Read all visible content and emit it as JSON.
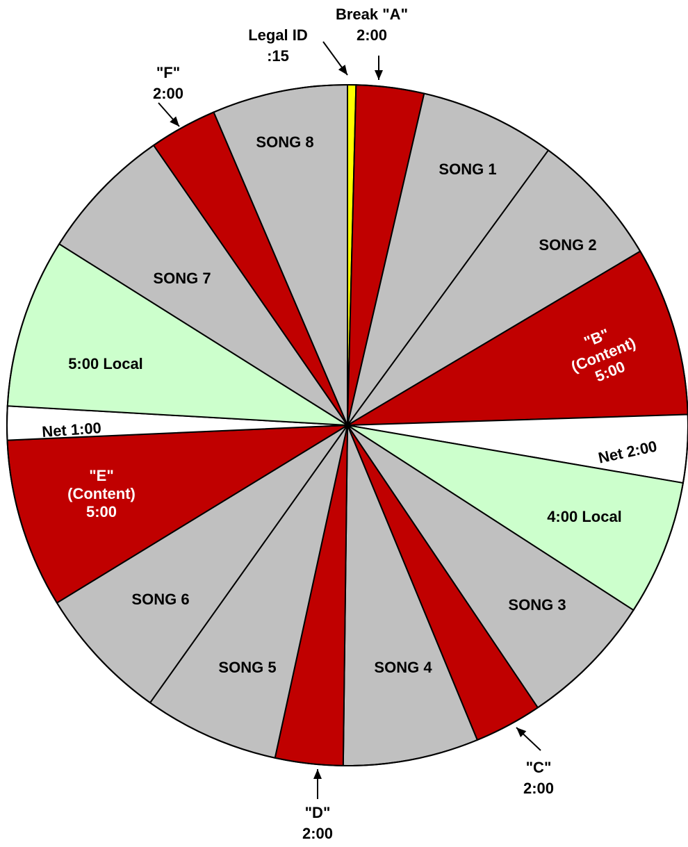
{
  "chart_data": {
    "type": "pie",
    "colors": {
      "song": "#C0C0C0",
      "break": "#C00000",
      "local": "#CCFFCC",
      "net": "#FFFFFF",
      "legal_id": "#FFFF00",
      "outline": "#000000",
      "label_dark": "#000000",
      "label_light": "#FFFFFF"
    },
    "slices": [
      {
        "name": "legal-id",
        "minutes": 0.25,
        "color_key": "legal_id",
        "lines": []
      },
      {
        "name": "break-a",
        "minutes": 2,
        "color_key": "break",
        "lines": []
      },
      {
        "name": "song-1",
        "minutes": 4,
        "color_key": "song",
        "lines": [
          "SONG 1"
        ]
      },
      {
        "name": "song-2",
        "minutes": 4,
        "color_key": "song",
        "lines": [
          "SONG 2"
        ]
      },
      {
        "name": "break-b",
        "minutes": 5,
        "color_key": "break",
        "lines": [
          "\"B\"",
          "(Content)",
          "5:00"
        ]
      },
      {
        "name": "net-2",
        "minutes": 2,
        "color_key": "net",
        "lines": [
          "Net 2:00"
        ]
      },
      {
        "name": "local-4",
        "minutes": 4,
        "color_key": "local",
        "lines": [
          "4:00 Local"
        ]
      },
      {
        "name": "song-3",
        "minutes": 4,
        "color_key": "song",
        "lines": [
          "SONG 3"
        ]
      },
      {
        "name": "break-c",
        "minutes": 2,
        "color_key": "break",
        "lines": []
      },
      {
        "name": "song-4",
        "minutes": 4,
        "color_key": "song",
        "lines": [
          "SONG 4"
        ]
      },
      {
        "name": "break-d",
        "minutes": 2,
        "color_key": "break",
        "lines": []
      },
      {
        "name": "song-5",
        "minutes": 4,
        "color_key": "song",
        "lines": [
          "SONG 5"
        ]
      },
      {
        "name": "song-6",
        "minutes": 4,
        "color_key": "song",
        "lines": [
          "SONG 6"
        ]
      },
      {
        "name": "break-e",
        "minutes": 5,
        "color_key": "break",
        "lines": [
          "\"E\"",
          "(Content)",
          "5:00"
        ]
      },
      {
        "name": "net-1",
        "minutes": 1,
        "color_key": "net",
        "lines": [
          "Net 1:00"
        ]
      },
      {
        "name": "local-5",
        "minutes": 5,
        "color_key": "local",
        "lines": [
          "5:00 Local"
        ]
      },
      {
        "name": "song-7",
        "minutes": 4,
        "color_key": "song",
        "lines": [
          "SONG 7"
        ]
      },
      {
        "name": "break-f",
        "minutes": 2,
        "color_key": "break",
        "lines": []
      },
      {
        "name": "song-8",
        "minutes": 4,
        "color_key": "song",
        "lines": [
          "SONG 8"
        ]
      }
    ],
    "callouts": [
      {
        "name": "legal-id",
        "lines": [
          "Legal ID",
          ":15"
        ]
      },
      {
        "name": "break-a",
        "lines": [
          "Break \"A\"",
          "2:00"
        ]
      },
      {
        "name": "break-c",
        "lines": [
          "\"C\"",
          "2:00"
        ]
      },
      {
        "name": "break-d",
        "lines": [
          "\"D\"",
          "2:00"
        ]
      },
      {
        "name": "break-f",
        "lines": [
          "\"F\"",
          "2:00"
        ]
      }
    ]
  }
}
